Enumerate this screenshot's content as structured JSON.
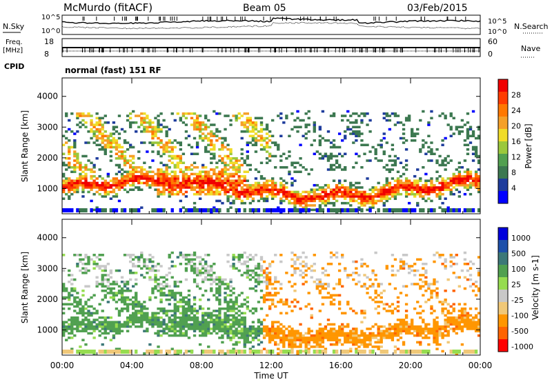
{
  "header": {
    "station": "McMurdo (fitACF)",
    "beam": "Beam 05",
    "date": "03/Feb/2015"
  },
  "panels": {
    "nsky_label": "N.Sky",
    "nsearch_label": "N.Search",
    "noise_ticks_top": "10^5",
    "noise_ticks_bottom": "10^0",
    "freq_label_1": "Freq.",
    "freq_label_2": "[MHz]",
    "freq_ticks": [
      "18",
      "8"
    ],
    "nave_label": "Nave",
    "nave_ticks": [
      "60",
      "0"
    ],
    "cpid_label": "CPID",
    "cpid_text": "normal (fast) 151 RF"
  },
  "colors": {
    "power": [
      "#0000ff",
      "#1e3c9c",
      "#3c7850",
      "#52a050",
      "#9bc83c",
      "#f0dc28",
      "#f5a028",
      "#ff7800",
      "#ff3c00",
      "#f00000"
    ],
    "velocity": [
      "#ff0000",
      "#ff6400",
      "#ff9600",
      "#f0c878",
      "#c8c8c8",
      "#96dc50",
      "#50a050",
      "#3c7878",
      "#1e50aa",
      "#0000dc"
    ]
  },
  "chart_data": [
    {
      "type": "heatmap",
      "name": "power",
      "ylabel": "Slant Range [km]",
      "ylim": [
        180,
        4600
      ],
      "yticks": [
        "1000",
        "2000",
        "3000",
        "4000"
      ],
      "xticks": [
        "00:00",
        "04:00",
        "08:00",
        "12:00",
        "16:00",
        "20:00",
        "00:00"
      ],
      "xlabel": "",
      "colorbar_label": "Power [dB]",
      "colorbar_ticks": [
        "4",
        "8",
        "12",
        "16",
        "20",
        "24",
        "28"
      ]
    },
    {
      "type": "heatmap",
      "name": "velocity",
      "ylabel": "Slant Range [km]",
      "ylim": [
        180,
        4600
      ],
      "yticks": [
        "1000",
        "2000",
        "3000",
        "4000"
      ],
      "xticks": [
        "00:00",
        "04:00",
        "08:00",
        "12:00",
        "16:00",
        "20:00",
        "00:00"
      ],
      "xlabel": "Time UT",
      "colorbar_label": "Velocity [m s-1]",
      "colorbar_ticks": [
        "1000",
        "500",
        "100",
        "25",
        "-25",
        "-100",
        "-500",
        "-1000"
      ]
    }
  ]
}
